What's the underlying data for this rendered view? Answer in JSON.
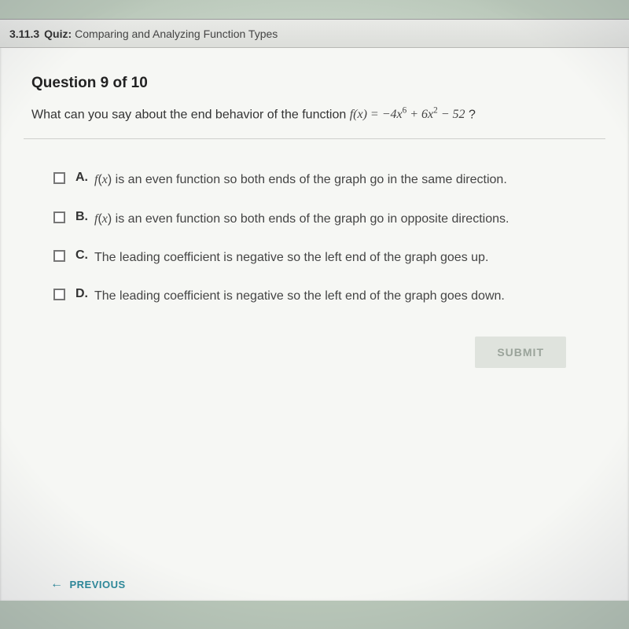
{
  "header": {
    "section_number": "3.11.3",
    "kind": "Quiz:",
    "title": "Comparing and Analyzing Function Types"
  },
  "question": {
    "number_label": "Question 9 of 10",
    "prompt_prefix": "What can you say about the end behavior of the function ",
    "function_html": "f(x) = −4x<sup>6</sup> + 6x<sup>2</sup> − 52",
    "prompt_suffix": " ?"
  },
  "options": [
    {
      "letter": "A.",
      "text_html": "<span class='fn'>f</span>(<span class='fn'>x</span>) is an even function so both ends of the graph go in the same direction."
    },
    {
      "letter": "B.",
      "text_html": "<span class='fn'>f</span>(<span class='fn'>x</span>) is an even function so both ends of the graph go in opposite directions."
    },
    {
      "letter": "C.",
      "text_html": "The leading coefficient is negative so the left end of the graph goes up."
    },
    {
      "letter": "D.",
      "text_html": "The leading coefficient is negative so the left end of the graph goes down."
    }
  ],
  "buttons": {
    "submit": "SUBMIT",
    "previous": "PREVIOUS"
  },
  "style": {
    "accent": "#2e8b9c",
    "checkbox_border": "#777"
  }
}
